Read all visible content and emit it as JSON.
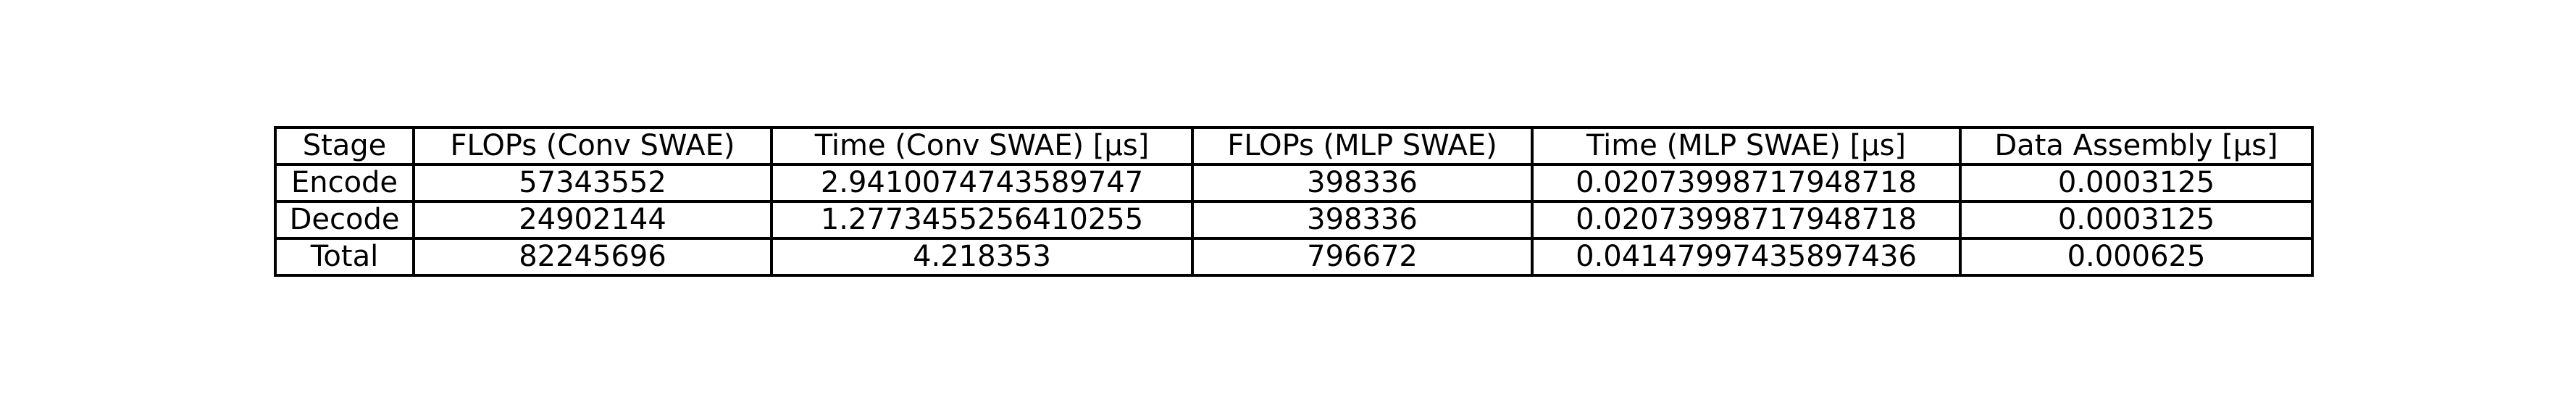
{
  "chart_data": {
    "type": "table",
    "columns": [
      "Stage",
      "FLOPs (Conv SWAE)",
      "Time (Conv SWAE) [µs]",
      "FLOPs (MLP SWAE)",
      "Time (MLP SWAE) [µs]",
      "Data Assembly [µs]"
    ],
    "rows": [
      [
        "Encode",
        "57343552",
        "2.9410074743589747",
        "398336",
        "0.02073998717948718",
        "0.0003125"
      ],
      [
        "Decode",
        "24902144",
        "1.2773455256410255",
        "398336",
        "0.02073998717948718",
        "0.0003125"
      ],
      [
        "Total",
        "82245696",
        "4.218353",
        "796672",
        "0.04147997435897436",
        "0.000625"
      ]
    ]
  }
}
